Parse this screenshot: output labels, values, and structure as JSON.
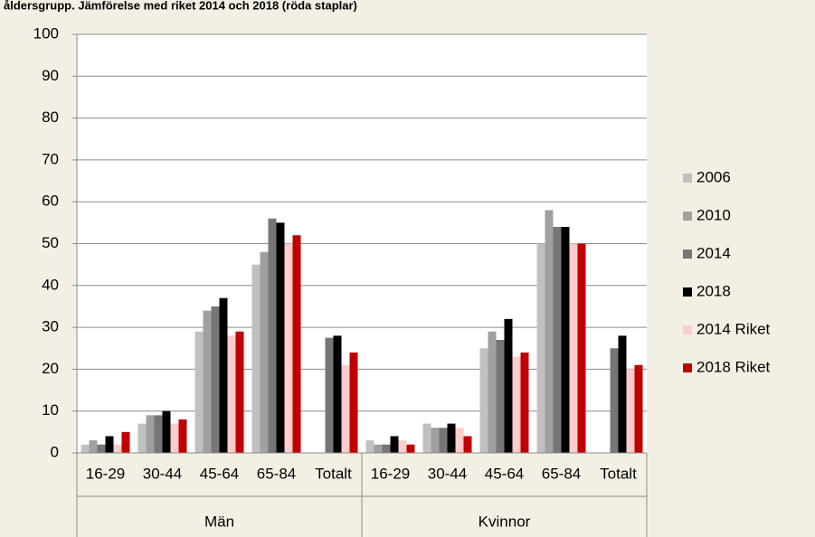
{
  "chart_data": {
    "type": "bar",
    "title": "åldersgrupp. Jämförelse med riket 2014 och 2018 (röda staplar)",
    "categories": [
      "16-29",
      "30-44",
      "45-64",
      "65-84",
      "Totalt",
      "16-29",
      "30-44",
      "45-64",
      "65-84",
      "Totalt"
    ],
    "groups": [
      "Män",
      "Kvinnor"
    ],
    "series": [
      {
        "name": "2006",
        "color": "#c0c0c0",
        "values": [
          2,
          7,
          29,
          45,
          null,
          3,
          7,
          25,
          50,
          null
        ]
      },
      {
        "name": "2010",
        "color": "#a0a0a0",
        "values": [
          3,
          9,
          34,
          48,
          null,
          2,
          6,
          29,
          58,
          null
        ]
      },
      {
        "name": "2014",
        "color": "#767676",
        "values": [
          2,
          9,
          35,
          56,
          27.5,
          2,
          6,
          27,
          54,
          25
        ]
      },
      {
        "name": "2018",
        "color": "#000000",
        "values": [
          4,
          10,
          37,
          55,
          28,
          4,
          7,
          32,
          54,
          28
        ]
      },
      {
        "name": "2014 Riket",
        "color": "#ffcccc",
        "values": [
          2,
          7,
          28,
          50,
          21,
          3,
          6,
          23,
          50,
          20
        ]
      },
      {
        "name": "2018 Riket",
        "color": "#c00000",
        "values": [
          5,
          8,
          29,
          52,
          24,
          2,
          4,
          24,
          50,
          21
        ]
      }
    ],
    "ylim": [
      0,
      100
    ],
    "yticks": [
      0,
      10,
      20,
      30,
      40,
      50,
      60,
      70,
      80,
      90,
      100
    ],
    "grid": true
  }
}
